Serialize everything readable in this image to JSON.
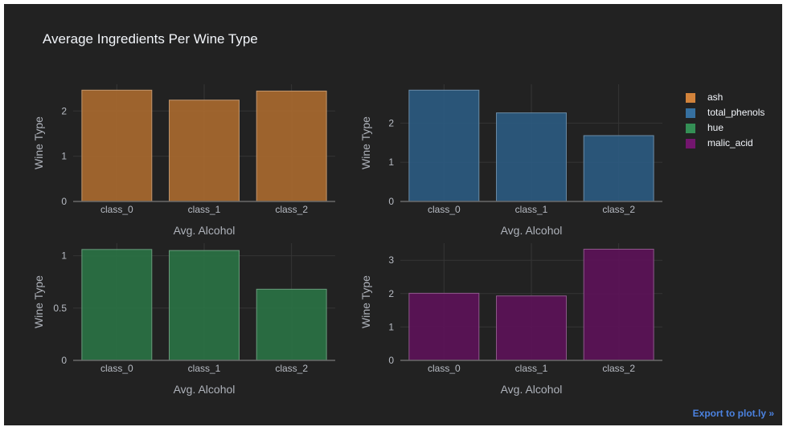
{
  "title": "Average Ingredients Per Wine Type",
  "export_label": "Export to plot.ly »",
  "legend": [
    {
      "name": "ash",
      "color": "#a8692f"
    },
    {
      "name": "total_phenols",
      "color": "#2b5a80"
    },
    {
      "name": "hue",
      "color": "#2a7244"
    },
    {
      "name": "malic_acid",
      "color": "#5c1258"
    }
  ],
  "chart_data": [
    {
      "type": "bar",
      "series_name": "ash",
      "categories": [
        "class_0",
        "class_1",
        "class_2"
      ],
      "values": [
        2.46,
        2.24,
        2.44
      ],
      "xlabel": "Avg. Alcohol",
      "ylabel": "Wine Type",
      "ylim": [
        0,
        2.59
      ],
      "yticks": [
        0,
        1,
        2
      ],
      "color": "#a8692f",
      "grid": true
    },
    {
      "type": "bar",
      "series_name": "total_phenols",
      "categories": [
        "class_0",
        "class_1",
        "class_2"
      ],
      "values": [
        2.84,
        2.26,
        1.68
      ],
      "xlabel": "Avg. Alcohol",
      "ylabel": "Wine Type",
      "ylim": [
        0,
        2.99
      ],
      "yticks": [
        0,
        1,
        2
      ],
      "color": "#2b5a80",
      "grid": true
    },
    {
      "type": "bar",
      "series_name": "hue",
      "categories": [
        "class_0",
        "class_1",
        "class_2"
      ],
      "values": [
        1.06,
        1.05,
        0.68
      ],
      "xlabel": "Avg. Alcohol",
      "ylabel": "Wine Type",
      "ylim": [
        0,
        1.12
      ],
      "yticks": [
        0,
        0.5,
        1
      ],
      "color": "#2a7244",
      "grid": true
    },
    {
      "type": "bar",
      "series_name": "malic_acid",
      "categories": [
        "class_0",
        "class_1",
        "class_2"
      ],
      "values": [
        2.01,
        1.93,
        3.33
      ],
      "xlabel": "Avg. Alcohol",
      "ylabel": "Wine Type",
      "ylim": [
        0,
        3.51
      ],
      "yticks": [
        0,
        1,
        2,
        3
      ],
      "color": "#5c1258",
      "grid": true
    }
  ]
}
